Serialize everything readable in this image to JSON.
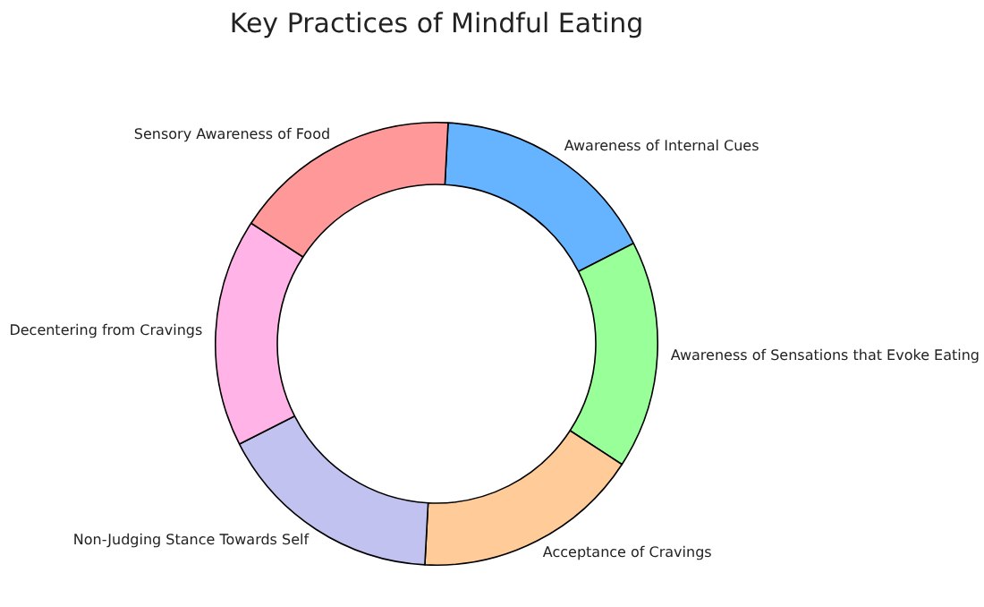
{
  "chart_data": {
    "type": "donut",
    "title": "Key Practices of Mindful Eating",
    "categories": [
      "Awareness of Internal Cues",
      "Awareness of Sensations that Evoke Eating",
      "Acceptance of Cravings",
      "Non-Judging Stance Towards Self",
      "Decentering from Cravings",
      "Sensory Awareness of Food"
    ],
    "values": [
      16.67,
      16.67,
      16.67,
      16.67,
      16.66,
      16.66
    ],
    "colors": [
      "#66b3ff",
      "#99ff99",
      "#ffcc99",
      "#c2c2f0",
      "#ffb3e6",
      "#ff9999"
    ],
    "legend": false
  }
}
